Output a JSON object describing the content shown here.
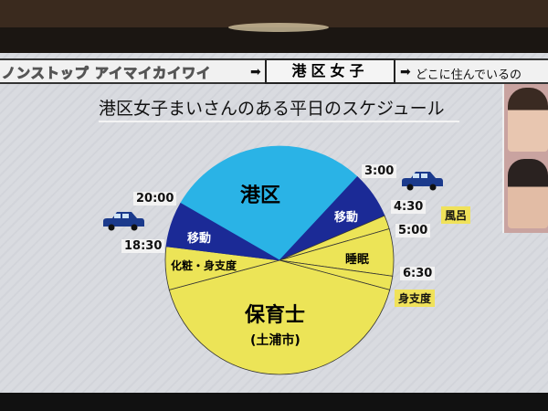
{
  "header": {
    "logo": "ノンストップ アイマイカイワイ",
    "topic": "港区女子",
    "subtitle": "どこに住んでいるの"
  },
  "chart_data": {
    "type": "pie",
    "title": "港区女子まいさんのある平日のスケジュール",
    "time_labels": [
      "3:00",
      "4:30",
      "5:00",
      "6:30",
      "18:30",
      "20:00"
    ],
    "segments": [
      {
        "label": "港区",
        "start": "20:00",
        "end": "3:00",
        "color": "#2ab3e6"
      },
      {
        "label": "移動",
        "start": "3:00",
        "end": "4:30",
        "color": "#1b2a96"
      },
      {
        "label": "風呂",
        "start": "4:30",
        "end": "5:00",
        "color": "#ece457"
      },
      {
        "label": "睡眠",
        "start": "5:00",
        "end": "6:30",
        "color": "#ece457"
      },
      {
        "label": "身支度",
        "start": "6:30",
        "end": "",
        "color": "#ece457"
      },
      {
        "label": "保育士",
        "sublabel": "(土浦市)",
        "start": "",
        "end": "",
        "color": "#ece457"
      },
      {
        "label": "化粧・身支度",
        "start": "",
        "end": "18:30",
        "color": "#ece457"
      },
      {
        "label": "移動",
        "start": "18:30",
        "end": "20:00",
        "color": "#1b2a96"
      }
    ],
    "icons": [
      "car-icon",
      "car-icon"
    ]
  }
}
